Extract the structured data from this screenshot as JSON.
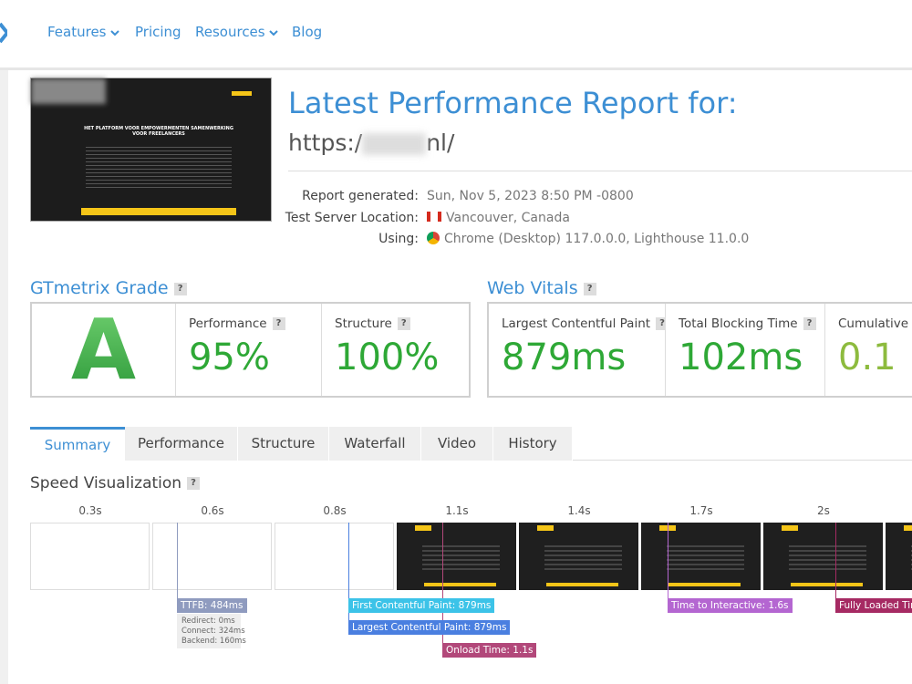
{
  "nav": {
    "items": [
      "Features",
      "Pricing",
      "Resources",
      "Blog"
    ]
  },
  "report": {
    "title": "Latest Performance Report for:",
    "url_start": "https:/",
    "url_end": "nl/",
    "details": [
      {
        "label": "Report generated:",
        "value": "Sun, Nov 5, 2023 8:50 PM -0800"
      },
      {
        "label": "Test Server Location:",
        "value": "Vancouver, Canada"
      },
      {
        "label": "Using:",
        "value": "Chrome (Desktop) 117.0.0.0, Lighthouse 11.0.0"
      }
    ]
  },
  "thumbnail": {
    "heading": "HET PLATFORM VOOR EMPOWERMENTEN SAMENWERKING VOOR FREELANCERS"
  },
  "help": "?",
  "grade": {
    "title": "GTmetrix Grade",
    "letter": "A",
    "metrics": [
      {
        "label": "Performance",
        "value": "95%"
      },
      {
        "label": "Structure",
        "value": "100%"
      }
    ]
  },
  "vitals": {
    "title": "Web Vitals",
    "metrics": [
      {
        "label": "Largest Contentful Paint",
        "value": "879ms"
      },
      {
        "label": "Total Blocking Time",
        "value": "102ms"
      },
      {
        "label": "Cumulative Layout Shift",
        "value": "0.1"
      }
    ]
  },
  "tabs": [
    "Summary",
    "Performance",
    "Structure",
    "Waterfall",
    "Video",
    "History"
  ],
  "speed": {
    "title": "Speed Visualization",
    "times": [
      "0.3s",
      "0.6s",
      "0.8s",
      "1.1s",
      "1.4s",
      "1.7s",
      "2s"
    ],
    "markers": [
      {
        "label": "TTFB: 484ms",
        "details": [
          "Redirect: 0ms",
          "Connect: 324ms",
          "Backend: 160ms"
        ]
      },
      {
        "label": "First Contentful Paint: 879ms"
      },
      {
        "label": "Largest Contentful Paint: 879ms"
      },
      {
        "label": "Onload Time: 1.1s"
      },
      {
        "label": "Time to Interactive: 1.6s"
      },
      {
        "label": "Fully Loaded Time"
      }
    ]
  }
}
